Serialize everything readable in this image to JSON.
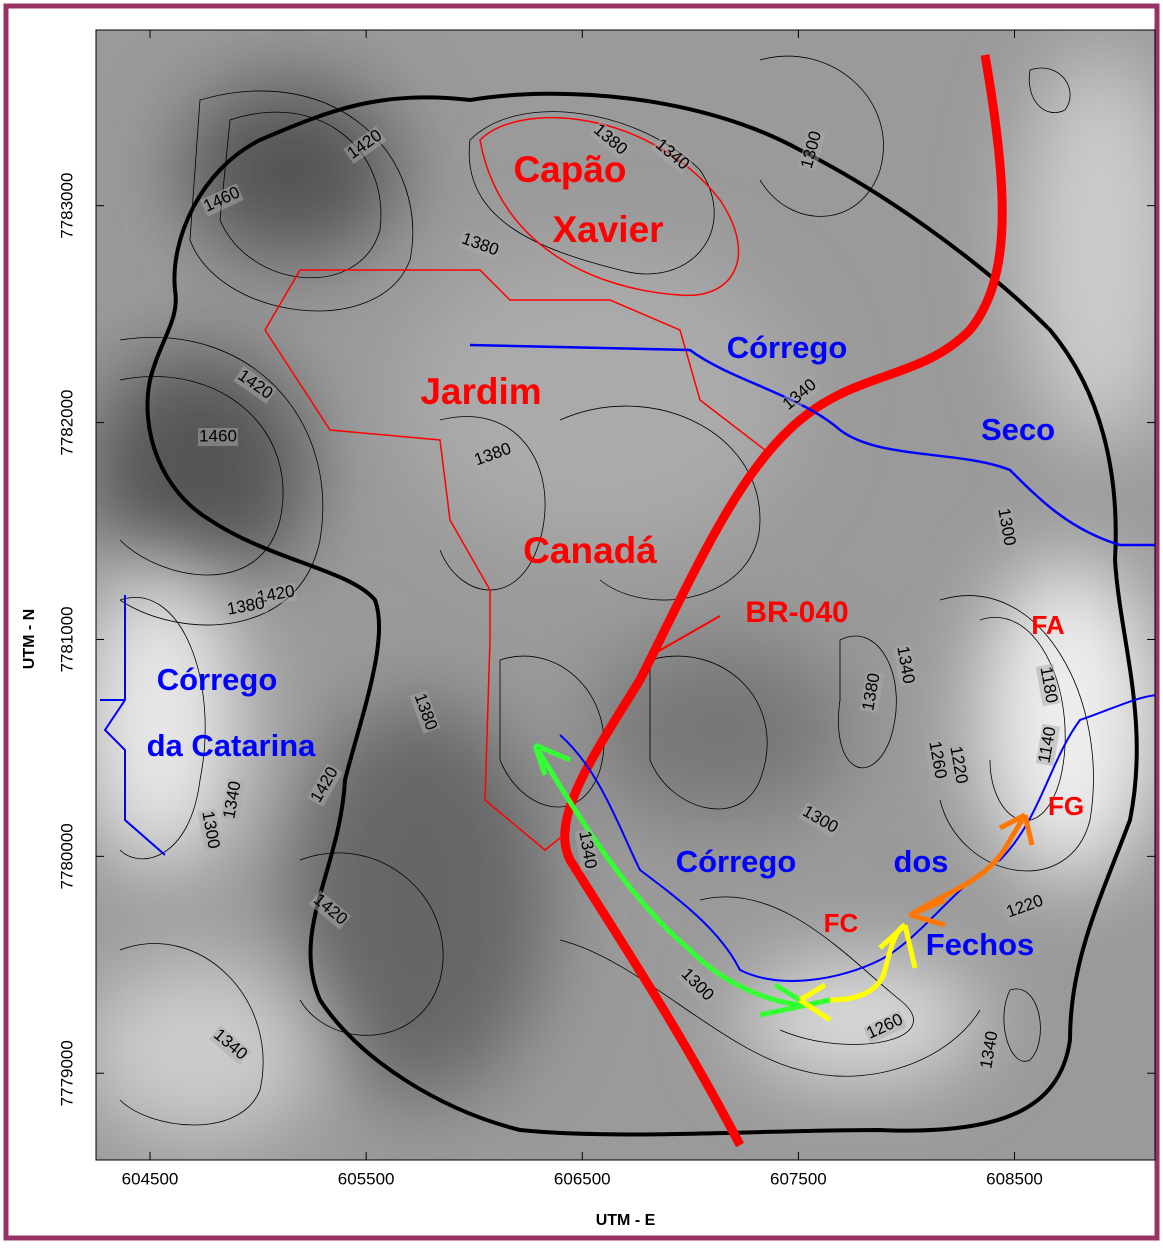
{
  "axes": {
    "x_label": "UTM - E",
    "y_label": "UTM - N",
    "xlim": [
      604250,
      609150
    ],
    "ylim": [
      7778600,
      7783810
    ],
    "xticks": [
      604500,
      605500,
      606500,
      607500,
      608500
    ],
    "yticks": [
      7779000,
      7780000,
      7781000,
      7782000,
      7783000
    ]
  },
  "places": [
    "Capão",
    "Xavier",
    "Jardim",
    "Canadá"
  ],
  "road": "BR-040",
  "streams": [
    "Córrego",
    "Seco",
    "Córrego",
    "da Catarina",
    "Córrego",
    "dos",
    "Fechos"
  ],
  "points": [
    "FA",
    "FG",
    "FC"
  ],
  "contour_labels": [
    1420,
    1460,
    1380,
    1340,
    1300,
    1380,
    1420,
    1460,
    1380,
    1340,
    1300,
    1420,
    1380,
    1380,
    1340,
    1180,
    1140,
    1260,
    1220,
    1380,
    1420,
    1340,
    1300,
    1300,
    1340,
    1220,
    1420,
    1300,
    1260,
    1340,
    1340
  ]
}
